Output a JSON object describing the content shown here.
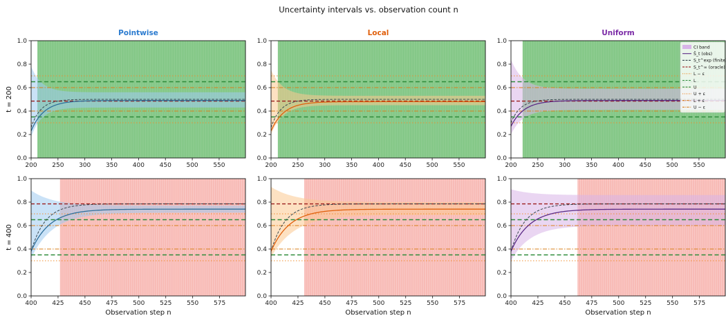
{
  "suptitle": "Uncertainty intervals vs. observation count  n",
  "column_titles": [
    {
      "text": "Pointwise",
      "color": "#2b7bcf"
    },
    {
      "text": "Local",
      "color": "#e0600d"
    },
    {
      "text": "Uniform",
      "color": "#7b2aa6"
    }
  ],
  "row_ylabels": [
    "t = 200",
    "t = 400"
  ],
  "xlabel": "Observation step  n",
  "legend": {
    "placement": "top-right of upper Uniform panel",
    "entries": [
      {
        "label": "CI band",
        "style": "band",
        "color": "#d8b4e8"
      },
      {
        "label": "Ŝ_t (obs)",
        "style": "solid",
        "color": "#5b2a86"
      },
      {
        "label": "S_t^exp (finite)",
        "style": "dashed",
        "color": "#37474f"
      },
      {
        "label": "S_t^∞ (oracle)",
        "style": "dashed",
        "color": "#9b1c1c"
      },
      {
        "label": "L − ε",
        "style": "dotted",
        "color": "#f08c2c"
      },
      {
        "label": "L",
        "style": "dashed",
        "color": "#2e8b3a"
      },
      {
        "label": "U",
        "style": "dashed",
        "color": "#2e8b3a"
      },
      {
        "label": "U + ε",
        "style": "dotted",
        "color": "#f08c2c"
      },
      {
        "label": "L + ε",
        "style": "dashdot",
        "color": "#d9801b"
      },
      {
        "label": "U − ε",
        "style": "dashdot",
        "color": "#d9801b"
      }
    ]
  },
  "chart_data": [
    {
      "type": "line",
      "row": 0,
      "col": 0,
      "method": "Pointwise",
      "xlim": [
        200,
        599
      ],
      "ylim": [
        0,
        1
      ],
      "xticks": [
        200,
        250,
        300,
        350,
        400,
        450,
        500,
        550
      ],
      "yticks": [
        0.0,
        0.2,
        0.4,
        0.6,
        0.8,
        1.0
      ],
      "obs": {
        "start": 0.23,
        "end": 0.49,
        "tau": 24
      },
      "finite": {
        "start": 0.26,
        "end": 0.5,
        "tau": 18
      },
      "band": {
        "upper_start": 0.78,
        "upper_end": 0.56,
        "lower_start": 0.18,
        "lower_end": 0.43,
        "tau": 20
      },
      "oracle": 0.485,
      "L": 0.35,
      "U": 0.65,
      "L_minus_eps": 0.3,
      "U_plus_eps": 0.7,
      "L_plus_eps": 0.4,
      "U_minus_eps": 0.6,
      "shade": {
        "from": 212,
        "to": 599,
        "color": "#4caf50"
      },
      "band_color": "#9ecbf0",
      "obs_color": "#2f6f9a",
      "finite_color": "#37474f"
    },
    {
      "type": "line",
      "row": 0,
      "col": 1,
      "method": "Local",
      "xlim": [
        200,
        599
      ],
      "ylim": [
        0,
        1
      ],
      "xticks": [
        200,
        250,
        300,
        350,
        400,
        450,
        500,
        550
      ],
      "yticks": [
        0.0,
        0.2,
        0.4,
        0.6,
        0.8,
        1.0
      ],
      "obs": {
        "start": 0.23,
        "end": 0.48,
        "tau": 24
      },
      "finite": {
        "start": 0.26,
        "end": 0.5,
        "tau": 18
      },
      "band": {
        "upper_start": 0.75,
        "upper_end": 0.53,
        "lower_start": 0.2,
        "lower_end": 0.45,
        "tau": 22
      },
      "oracle": 0.485,
      "L": 0.35,
      "U": 0.65,
      "L_minus_eps": 0.3,
      "U_plus_eps": 0.7,
      "L_plus_eps": 0.4,
      "U_minus_eps": 0.6,
      "shade": {
        "from": 213,
        "to": 599,
        "color": "#4caf50"
      },
      "band_color": "#fbc98f",
      "obs_color": "#e0600d",
      "finite_color": "#37474f"
    },
    {
      "type": "line",
      "row": 0,
      "col": 2,
      "method": "Uniform",
      "xlim": [
        200,
        599
      ],
      "ylim": [
        0,
        1
      ],
      "xticks": [
        200,
        250,
        300,
        350,
        400,
        450,
        500,
        550
      ],
      "yticks": [
        0.0,
        0.2,
        0.4,
        0.6,
        0.8,
        1.0
      ],
      "obs": {
        "start": 0.27,
        "end": 0.49,
        "tau": 24
      },
      "finite": {
        "start": 0.3,
        "end": 0.5,
        "tau": 18
      },
      "band": {
        "upper_start": 0.84,
        "upper_end": 0.59,
        "lower_start": 0.2,
        "lower_end": 0.41,
        "tau": 22
      },
      "oracle": 0.485,
      "L": 0.35,
      "U": 0.65,
      "L_minus_eps": 0.3,
      "U_plus_eps": 0.7,
      "L_plus_eps": 0.4,
      "U_minus_eps": 0.6,
      "shade": {
        "from": 222,
        "to": 599,
        "color": "#4caf50"
      },
      "band_color": "#d8b4e8",
      "obs_color": "#5b2a86",
      "finite_color": "#37474f"
    },
    {
      "type": "line",
      "row": 1,
      "col": 0,
      "method": "Pointwise",
      "xlim": [
        400,
        599
      ],
      "ylim": [
        0,
        1
      ],
      "xticks": [
        400,
        425,
        450,
        475,
        500,
        525,
        550,
        575
      ],
      "yticks": [
        0.0,
        0.2,
        0.4,
        0.6,
        0.8,
        1.0
      ],
      "obs": {
        "start": 0.38,
        "end": 0.74,
        "tau": 17
      },
      "finite": {
        "start": 0.38,
        "end": 0.785,
        "tau": 13
      },
      "band": {
        "upper_start": 0.9,
        "upper_end": 0.77,
        "lower_start": 0.32,
        "lower_end": 0.71,
        "tau": 20
      },
      "oracle": 0.785,
      "L": 0.35,
      "U": 0.65,
      "L_minus_eps": 0.3,
      "U_plus_eps": 0.7,
      "L_plus_eps": 0.4,
      "U_minus_eps": 0.6,
      "shade": {
        "from": 427,
        "to": 599,
        "color": "#f28b82"
      },
      "band_color": "#9ecbf0",
      "obs_color": "#2f6f9a",
      "finite_color": "#37474f"
    },
    {
      "type": "line",
      "row": 1,
      "col": 1,
      "method": "Local",
      "xlim": [
        400,
        599
      ],
      "ylim": [
        0,
        1
      ],
      "xticks": [
        400,
        425,
        450,
        475,
        500,
        525,
        550,
        575
      ],
      "yticks": [
        0.0,
        0.2,
        0.4,
        0.6,
        0.8,
        1.0
      ],
      "obs": {
        "start": 0.38,
        "end": 0.74,
        "tau": 17
      },
      "finite": {
        "start": 0.38,
        "end": 0.785,
        "tau": 13
      },
      "band": {
        "upper_start": 0.93,
        "upper_end": 0.8,
        "lower_start": 0.33,
        "lower_end": 0.69,
        "tau": 22
      },
      "oracle": 0.785,
      "L": 0.35,
      "U": 0.65,
      "L_minus_eps": 0.3,
      "U_plus_eps": 0.7,
      "L_plus_eps": 0.4,
      "U_minus_eps": 0.6,
      "shade": {
        "from": 431,
        "to": 599,
        "color": "#f28b82"
      },
      "band_color": "#fbc98f",
      "obs_color": "#e0600d",
      "finite_color": "#37474f"
    },
    {
      "type": "line",
      "row": 1,
      "col": 2,
      "method": "Uniform",
      "xlim": [
        400,
        599
      ],
      "ylim": [
        0,
        1
      ],
      "xticks": [
        400,
        425,
        450,
        475,
        500,
        525,
        550,
        575
      ],
      "yticks": [
        0.0,
        0.2,
        0.4,
        0.6,
        0.8,
        1.0
      ],
      "obs": {
        "start": 0.38,
        "end": 0.74,
        "tau": 17
      },
      "finite": {
        "start": 0.38,
        "end": 0.785,
        "tau": 13
      },
      "band": {
        "upper_start": 0.91,
        "upper_end": 0.86,
        "lower_start": 0.3,
        "lower_end": 0.6,
        "tau": 18
      },
      "oracle": 0.785,
      "L": 0.35,
      "U": 0.65,
      "L_minus_eps": 0.3,
      "U_plus_eps": 0.7,
      "L_plus_eps": 0.4,
      "U_minus_eps": 0.6,
      "shade": {
        "from": 462,
        "to": 599,
        "color": "#f28b82"
      },
      "band_color": "#d8b4e8",
      "obs_color": "#5b2a86",
      "finite_color": "#37474f"
    }
  ]
}
